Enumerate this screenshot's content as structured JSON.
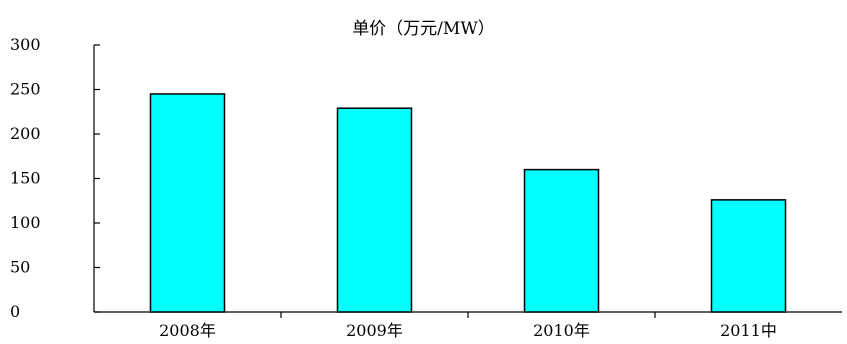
{
  "chart_data": {
    "type": "bar",
    "title": "单价（万元/MW）",
    "categories": [
      "2008年",
      "2009年",
      "2010年",
      "2011中"
    ],
    "values": [
      245,
      229,
      160,
      126
    ],
    "ylim": [
      0,
      300
    ],
    "yticks": [
      0,
      50,
      100,
      150,
      200,
      250,
      300
    ],
    "xlabel": "",
    "ylabel": "",
    "grid": false,
    "legend": "none",
    "colors": {
      "bar_fill": "#00FFFF",
      "bar_stroke": "#000000",
      "axis": "#000000",
      "text": "#000000"
    }
  }
}
